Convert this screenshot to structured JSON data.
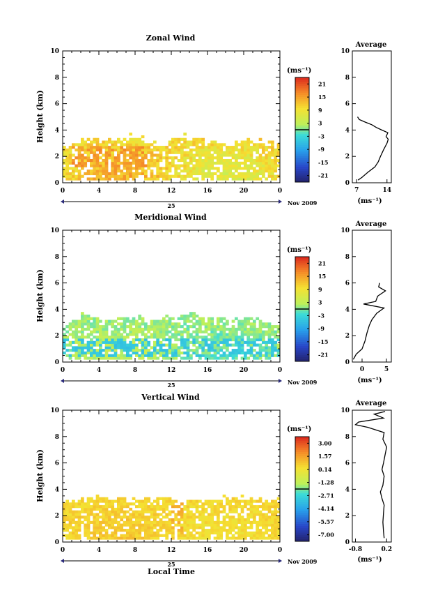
{
  "figure": {
    "xlabel": "Local Time",
    "date_label": "Nov 2009",
    "day_label": "25"
  },
  "chart_data": [
    {
      "type": "heatmap",
      "title": "Zonal Wind",
      "xlabel": "",
      "ylabel": "Height (km)",
      "x_ticks": [
        "0",
        "4",
        "8",
        "12",
        "16",
        "20",
        "0"
      ],
      "y_ticks": [
        "0",
        "2",
        "4",
        "6",
        "8",
        "10"
      ],
      "xlim": [
        0,
        24
      ],
      "ylim": [
        0,
        10
      ],
      "colorbar": {
        "unit": "(ms⁻¹)",
        "ticks": [
          "21",
          "15",
          "9",
          "3",
          "-3",
          "-9",
          "-15",
          "-21"
        ],
        "range": [
          -24,
          24
        ]
      },
      "field": {
        "base_value": 10,
        "amplitude": 4,
        "noise": 3,
        "ceiling_km": [
          2.8,
          3.0,
          3.4,
          3.3,
          3.1,
          3.0,
          3.2,
          3.4,
          3.3,
          2.9,
          2.8,
          2.9,
          3.2,
          3.3,
          3.4,
          3.2,
          3.1,
          2.9,
          2.8,
          3.0,
          3.1,
          2.9,
          2.8,
          2.9
        ],
        "hot_spot": {
          "hours": [
            1,
            9
          ],
          "km": [
            1.2,
            2.8
          ],
          "value": 16
        }
      },
      "average": {
        "title": "Average",
        "xlabel": "(ms⁻¹)",
        "x_ticks": [
          "7",
          "14"
        ],
        "xlim": [
          6,
          15
        ],
        "y_ticks": [
          "0",
          "2",
          "4",
          "6",
          "8",
          "10"
        ],
        "profile": [
          [
            7.3,
            0.2
          ],
          [
            8.2,
            0.4
          ],
          [
            9.6,
            0.8
          ],
          [
            11.2,
            1.2
          ],
          [
            12.0,
            1.6
          ],
          [
            12.5,
            2.0
          ],
          [
            13.2,
            2.5
          ],
          [
            14.0,
            3.0
          ],
          [
            14.3,
            3.3
          ],
          [
            13.8,
            3.5
          ],
          [
            14.2,
            3.8
          ],
          [
            12.8,
            4.0
          ],
          [
            11.5,
            4.2
          ],
          [
            10.5,
            4.4
          ],
          [
            9.0,
            4.6
          ],
          [
            7.6,
            4.8
          ],
          [
            7.2,
            5.0
          ]
        ]
      }
    },
    {
      "type": "heatmap",
      "title": "Meridional Wind",
      "xlabel": "",
      "ylabel": "Height (km)",
      "x_ticks": [
        "0",
        "4",
        "8",
        "12",
        "16",
        "20",
        "0"
      ],
      "y_ticks": [
        "0",
        "2",
        "4",
        "6",
        "8",
        "10"
      ],
      "xlim": [
        0,
        24
      ],
      "ylim": [
        0,
        10
      ],
      "colorbar": {
        "unit": "(ms⁻¹)",
        "ticks": [
          "21",
          "15",
          "9",
          "3",
          "-3",
          "-9",
          "-15",
          "-21"
        ],
        "range": [
          -24,
          24
        ]
      },
      "field": {
        "base_value": 1,
        "amplitude": 2,
        "noise": 2,
        "ceiling_km": [
          2.8,
          3.0,
          3.6,
          3.4,
          3.1,
          3.0,
          3.2,
          3.3,
          3.2,
          3.0,
          3.1,
          3.3,
          3.4,
          3.5,
          3.6,
          3.4,
          3.3,
          3.2,
          3.1,
          3.0,
          3.2,
          3.1,
          2.9,
          2.8
        ],
        "hot_spot": {
          "hours": [
            0,
            24
          ],
          "km": [
            0.3,
            1.6
          ],
          "value": -5
        }
      },
      "average": {
        "title": "Average",
        "xlabel": "(ms⁻¹)",
        "x_ticks": [
          "0",
          "5"
        ],
        "xlim": [
          -2,
          6
        ],
        "y_ticks": [
          "0",
          "2",
          "4",
          "6",
          "8",
          "10"
        ],
        "profile": [
          [
            -1.8,
            0.2
          ],
          [
            -1.2,
            0.6
          ],
          [
            0.0,
            1.0
          ],
          [
            0.6,
            1.6
          ],
          [
            1.0,
            2.2
          ],
          [
            1.5,
            2.8
          ],
          [
            2.0,
            3.2
          ],
          [
            3.0,
            3.7
          ],
          [
            4.5,
            4.1
          ],
          [
            0.3,
            4.4
          ],
          [
            2.8,
            4.6
          ],
          [
            3.2,
            5.0
          ],
          [
            4.8,
            5.4
          ],
          [
            3.4,
            5.7
          ],
          [
            3.6,
            6.0
          ]
        ]
      }
    },
    {
      "type": "heatmap",
      "title": "Vertical Wind",
      "xlabel": "Local Time",
      "ylabel": "Height (km)",
      "x_ticks": [
        "0",
        "4",
        "8",
        "12",
        "16",
        "20",
        "0"
      ],
      "y_ticks": [
        "0",
        "2",
        "4",
        "6",
        "8",
        "10"
      ],
      "xlim": [
        0,
        24
      ],
      "ylim": [
        0,
        10
      ],
      "colorbar": {
        "unit": "(ms⁻¹)",
        "ticks": [
          "3.00",
          "1.57",
          "0.14",
          "-1.28",
          "-2.71",
          "-4.14",
          "-5.57",
          "-7.00"
        ],
        "range": [
          -7.72,
          3.72
        ]
      },
      "field": {
        "base_value": 0.5,
        "amplitude": 0.3,
        "noise": 0.4,
        "ceiling_km": [
          2.9,
          3.0,
          3.2,
          3.3,
          3.2,
          3.1,
          3.3,
          3.2,
          3.1,
          3.2,
          3.3,
          3.2,
          3.1,
          3.0,
          3.0,
          3.1,
          3.0,
          3.1,
          3.2,
          3.1,
          3.1,
          3.0,
          3.1,
          3.0
        ],
        "hot_spot": {
          "hours": [
            12,
            13
          ],
          "km": [
            0.5,
            3.0
          ],
          "value": 1.3
        }
      },
      "average": {
        "title": "Average",
        "xlabel": "(ms⁻¹)",
        "x_ticks": [
          "-0.8",
          "0.2"
        ],
        "xlim": [
          -0.9,
          0.35
        ],
        "y_ticks": [
          "0",
          "2",
          "4",
          "6",
          "8",
          "10"
        ],
        "profile": [
          [
            0.12,
            0.3
          ],
          [
            0.1,
            0.8
          ],
          [
            0.08,
            1.5
          ],
          [
            0.1,
            2.2
          ],
          [
            0.12,
            2.8
          ],
          [
            0.05,
            3.3
          ],
          [
            0.0,
            3.8
          ],
          [
            0.08,
            4.3
          ],
          [
            0.12,
            5.0
          ],
          [
            0.05,
            5.5
          ],
          [
            0.1,
            6.0
          ],
          [
            0.15,
            6.6
          ],
          [
            0.2,
            7.2
          ],
          [
            0.08,
            7.8
          ],
          [
            0.12,
            8.3
          ],
          [
            -0.4,
            8.7
          ],
          [
            -0.8,
            8.9
          ],
          [
            -0.7,
            9.1
          ],
          [
            0.1,
            9.4
          ],
          [
            -0.2,
            9.7
          ],
          [
            0.15,
            9.9
          ]
        ]
      }
    }
  ]
}
